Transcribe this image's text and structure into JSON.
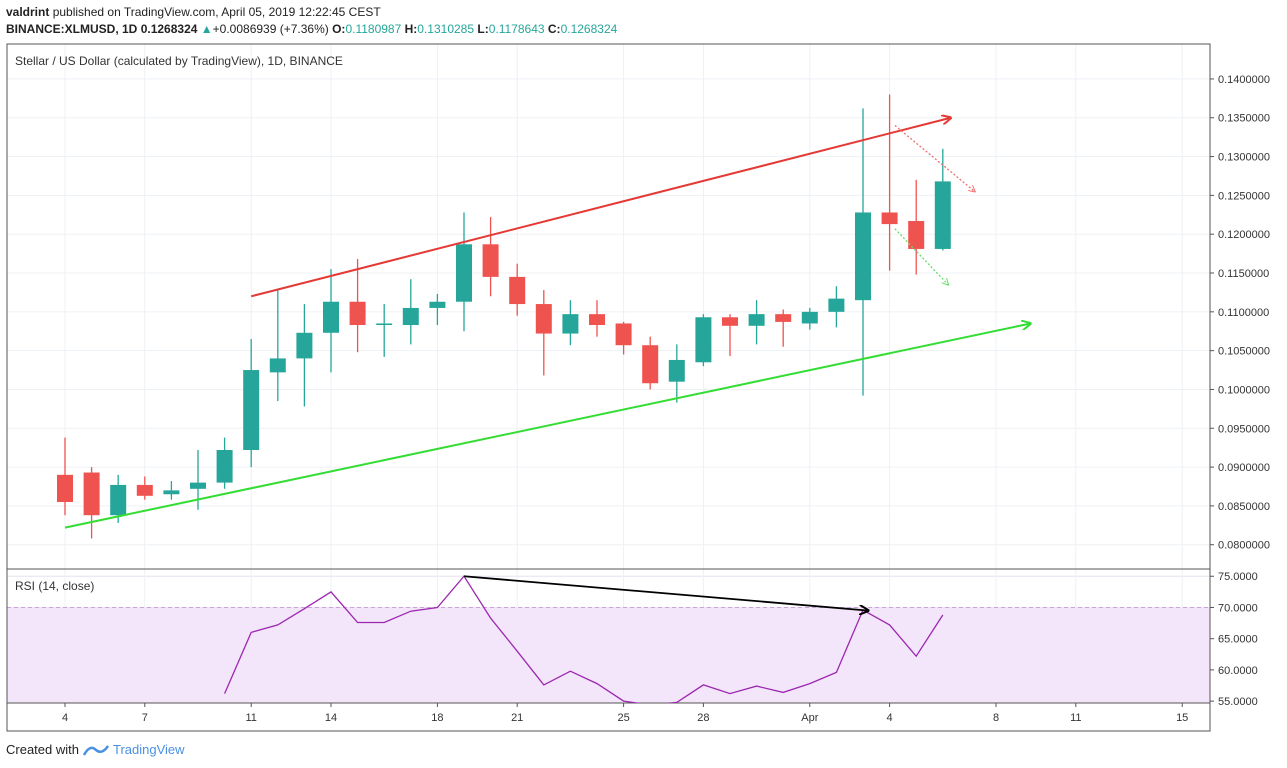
{
  "header": {
    "user": "valdrint",
    "published": "published on TradingView.com, April 05, 2019 12:22:45 CEST",
    "symbol": "BINANCE:XLMUSD, 1D",
    "last": "0.1268324",
    "change": "+0.0086939 (+7.36%)",
    "o_label": "O:",
    "o_val": "0.1180987",
    "h_label": "H:",
    "h_val": "0.1310285",
    "l_label": "L:",
    "l_val": "0.1178643",
    "c_label": "C:",
    "c_val": "0.1268324"
  },
  "footer": {
    "created": "Created with",
    "brand": "TradingView"
  },
  "colors": {
    "up": "#26a69a",
    "down": "#ef5350",
    "rsi_line": "#9c27b0",
    "rsi_band": "#f3e5fa",
    "upper_trend": "#e53935",
    "lower_trend": "#33dd33"
  },
  "chart_data": {
    "type": "candlestick",
    "title": "Stellar / US Dollar (calculated by TradingView), 1D, BINANCE",
    "ylim": [
      0.077,
      0.1445
    ],
    "y_ticks": [
      "0.1400000",
      "0.1350000",
      "0.1300000",
      "0.1250000",
      "0.1200000",
      "0.1150000",
      "0.1100000",
      "0.1050000",
      "0.1000000",
      "0.0950000",
      "0.0900000",
      "0.0850000",
      "0.0800000"
    ],
    "x_ticks": [
      {
        "label": "4",
        "day": 4
      },
      {
        "label": "7",
        "day": 7
      },
      {
        "label": "11",
        "day": 11
      },
      {
        "label": "14",
        "day": 14
      },
      {
        "label": "18",
        "day": 18
      },
      {
        "label": "21",
        "day": 21
      },
      {
        "label": "25",
        "day": 25
      },
      {
        "label": "28",
        "day": 28
      },
      {
        "label": "Apr",
        "day": 32
      },
      {
        "label": "4",
        "day": 35
      },
      {
        "label": "8",
        "day": 39
      },
      {
        "label": "11",
        "day": 42
      },
      {
        "label": "15",
        "day": 46
      }
    ],
    "candles": [
      {
        "day": 4,
        "o": 0.089,
        "h": 0.0938,
        "l": 0.0838,
        "c": 0.0855
      },
      {
        "day": 5,
        "o": 0.0893,
        "h": 0.09,
        "l": 0.0808,
        "c": 0.0838
      },
      {
        "day": 6,
        "o": 0.0838,
        "h": 0.089,
        "l": 0.0828,
        "c": 0.0877
      },
      {
        "day": 7,
        "o": 0.0877,
        "h": 0.0888,
        "l": 0.0858,
        "c": 0.0863
      },
      {
        "day": 8,
        "o": 0.0865,
        "h": 0.0882,
        "l": 0.0858,
        "c": 0.087
      },
      {
        "day": 9,
        "o": 0.0872,
        "h": 0.0922,
        "l": 0.0845,
        "c": 0.088
      },
      {
        "day": 10,
        "o": 0.088,
        "h": 0.0938,
        "l": 0.0872,
        "c": 0.0922
      },
      {
        "day": 11,
        "o": 0.0922,
        "h": 0.1065,
        "l": 0.09,
        "c": 0.1025
      },
      {
        "day": 12,
        "o": 0.1022,
        "h": 0.1128,
        "l": 0.0985,
        "c": 0.104
      },
      {
        "day": 13,
        "o": 0.104,
        "h": 0.111,
        "l": 0.0978,
        "c": 0.1073
      },
      {
        "day": 14,
        "o": 0.1073,
        "h": 0.1155,
        "l": 0.1022,
        "c": 0.1113
      },
      {
        "day": 15,
        "o": 0.1113,
        "h": 0.1168,
        "l": 0.1048,
        "c": 0.1083
      },
      {
        "day": 16,
        "o": 0.1083,
        "h": 0.111,
        "l": 0.1042,
        "c": 0.1085
      },
      {
        "day": 17,
        "o": 0.1083,
        "h": 0.1142,
        "l": 0.1058,
        "c": 0.1105
      },
      {
        "day": 18,
        "o": 0.1105,
        "h": 0.1123,
        "l": 0.1083,
        "c": 0.1113
      },
      {
        "day": 19,
        "o": 0.1113,
        "h": 0.1228,
        "l": 0.1075,
        "c": 0.1187
      },
      {
        "day": 20,
        "o": 0.1187,
        "h": 0.1222,
        "l": 0.112,
        "c": 0.1145
      },
      {
        "day": 21,
        "o": 0.1145,
        "h": 0.1162,
        "l": 0.1095,
        "c": 0.111
      },
      {
        "day": 22,
        "o": 0.111,
        "h": 0.1128,
        "l": 0.1018,
        "c": 0.1072
      },
      {
        "day": 23,
        "o": 0.1072,
        "h": 0.1115,
        "l": 0.1057,
        "c": 0.1097
      },
      {
        "day": 24,
        "o": 0.1097,
        "h": 0.1115,
        "l": 0.1068,
        "c": 0.1083
      },
      {
        "day": 25,
        "o": 0.1085,
        "h": 0.1087,
        "l": 0.1045,
        "c": 0.1057
      },
      {
        "day": 26,
        "o": 0.1057,
        "h": 0.1068,
        "l": 0.1,
        "c": 0.1008
      },
      {
        "day": 27,
        "o": 0.101,
        "h": 0.1058,
        "l": 0.0983,
        "c": 0.1038
      },
      {
        "day": 28,
        "o": 0.1035,
        "h": 0.1097,
        "l": 0.103,
        "c": 0.1093
      },
      {
        "day": 29,
        "o": 0.1093,
        "h": 0.1097,
        "l": 0.1043,
        "c": 0.1082
      },
      {
        "day": 30,
        "o": 0.1082,
        "h": 0.1115,
        "l": 0.1058,
        "c": 0.1097
      },
      {
        "day": 31,
        "o": 0.1097,
        "h": 0.1103,
        "l": 0.1055,
        "c": 0.1087
      },
      {
        "day": 32,
        "o": 0.1085,
        "h": 0.1105,
        "l": 0.1077,
        "c": 0.11
      },
      {
        "day": 33,
        "o": 0.11,
        "h": 0.1133,
        "l": 0.108,
        "c": 0.1117
      },
      {
        "day": 34,
        "o": 0.1115,
        "h": 0.1362,
        "l": 0.0992,
        "c": 0.1228
      },
      {
        "day": 35,
        "o": 0.1228,
        "h": 0.138,
        "l": 0.1153,
        "c": 0.1213
      },
      {
        "day": 36,
        "o": 0.1217,
        "h": 0.127,
        "l": 0.1148,
        "c": 0.1181
      },
      {
        "day": 37,
        "o": 0.1181,
        "h": 0.131,
        "l": 0.1179,
        "c": 0.1268
      }
    ],
    "trendlines": [
      {
        "name": "upper",
        "from": {
          "day": 11,
          "price": 0.112
        },
        "to": {
          "day": 37.3,
          "price": 0.135
        }
      },
      {
        "name": "lower",
        "from": {
          "day": 4,
          "price": 0.0822
        },
        "to": {
          "day": 40.3,
          "price": 0.1085
        }
      },
      {
        "name": "dotted-red",
        "from": {
          "day": 35.2,
          "price": 0.134
        },
        "to": {
          "day": 38.2,
          "price": 0.1255
        }
      },
      {
        "name": "dotted-green",
        "from": {
          "day": 35.2,
          "price": 0.1207
        },
        "to": {
          "day": 37.2,
          "price": 0.1135
        }
      }
    ],
    "rsi": {
      "label": "RSI (14, close)",
      "ylim": [
        54.7,
        76
      ],
      "y_ticks": [
        "75.0000",
        "70.0000",
        "65.0000",
        "60.0000",
        "55.0000"
      ],
      "values": [
        {
          "day": 10,
          "v": 56.2
        },
        {
          "day": 11,
          "v": 66.0
        },
        {
          "day": 12,
          "v": 67.2
        },
        {
          "day": 13,
          "v": 69.8
        },
        {
          "day": 14,
          "v": 72.5
        },
        {
          "day": 15,
          "v": 67.6
        },
        {
          "day": 16,
          "v": 67.6
        },
        {
          "day": 17,
          "v": 69.4
        },
        {
          "day": 18,
          "v": 70.0
        },
        {
          "day": 19,
          "v": 75.0
        },
        {
          "day": 20,
          "v": 68.3
        },
        {
          "day": 21,
          "v": 63.0
        },
        {
          "day": 22,
          "v": 57.6
        },
        {
          "day": 23,
          "v": 59.8
        },
        {
          "day": 24,
          "v": 57.8
        },
        {
          "day": 25,
          "v": 55.0
        },
        {
          "day": 26,
          "v": 54.4
        },
        {
          "day": 27,
          "v": 54.8
        },
        {
          "day": 28,
          "v": 57.6
        },
        {
          "day": 29,
          "v": 56.2
        },
        {
          "day": 30,
          "v": 57.4
        },
        {
          "day": 31,
          "v": 56.4
        },
        {
          "day": 32,
          "v": 57.8
        },
        {
          "day": 33,
          "v": 59.6
        },
        {
          "day": 34,
          "v": 69.6
        },
        {
          "day": 35,
          "v": 67.2
        },
        {
          "day": 36,
          "v": 62.2
        },
        {
          "day": 37,
          "v": 68.8
        }
      ],
      "divergence": {
        "from": {
          "day": 19,
          "v": 75.0
        },
        "to": {
          "day": 34.2,
          "v": 69.5
        }
      }
    }
  }
}
